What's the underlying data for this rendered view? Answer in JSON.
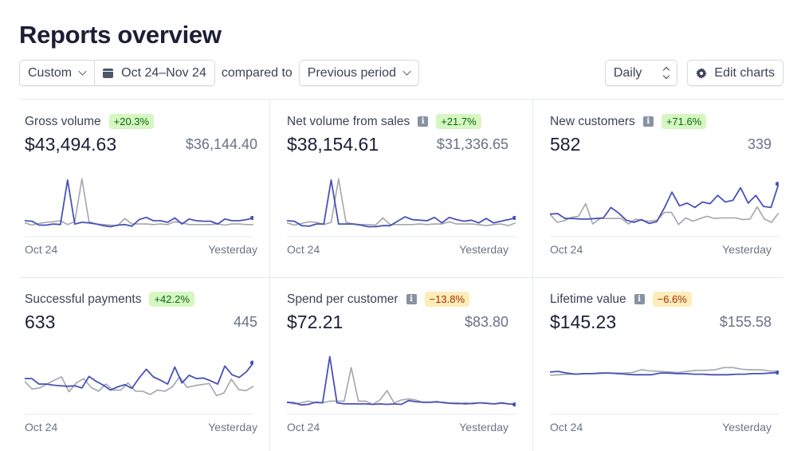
{
  "header": {
    "title": "Reports overview"
  },
  "toolbar": {
    "range_preset": "Custom",
    "date_range": "Oct 24–Nov 24",
    "compared_label": "compared to",
    "comparison": "Previous period",
    "interval": "Daily",
    "edit_charts": "Edit charts"
  },
  "colors": {
    "current": "#4752b8",
    "previous": "#a3a6ad",
    "badge_up_bg": "#d7f7c2",
    "badge_down_bg": "#fcedb9"
  },
  "cards": [
    {
      "label": "Gross volume",
      "info": false,
      "change": "+20.3%",
      "trend": "up",
      "value": "$43,494.63",
      "previous": "$36,144.40",
      "x_start": "Oct 24",
      "x_end": "Yesterday"
    },
    {
      "label": "Net volume from sales",
      "info": true,
      "change": "+21.7%",
      "trend": "up",
      "value": "$38,154.61",
      "previous": "$31,336.65",
      "x_start": "Oct 24",
      "x_end": "Yesterday"
    },
    {
      "label": "New customers",
      "info": true,
      "change": "+71.6%",
      "trend": "up",
      "value": "582",
      "previous": "339",
      "x_start": "Oct 24",
      "x_end": "Yesterday"
    },
    {
      "label": "Successful payments",
      "info": false,
      "change": "+42.2%",
      "trend": "up",
      "value": "633",
      "previous": "445",
      "x_start": "Oct 24",
      "x_end": "Yesterday"
    },
    {
      "label": "Spend per customer",
      "info": true,
      "change": "−13.8%",
      "trend": "down",
      "value": "$72.21",
      "previous": "$83.80",
      "x_start": "Oct 24",
      "x_end": "Yesterday"
    },
    {
      "label": "Lifetime value",
      "info": true,
      "change": "−6.6%",
      "trend": "down",
      "value": "$145.23",
      "previous": "$155.58",
      "x_start": "Oct 24",
      "x_end": "Yesterday"
    }
  ],
  "chart_data": [
    {
      "type": "line",
      "title": "Gross volume",
      "x_start": "Oct 24",
      "x_end": "Yesterday",
      "ylim": [
        0,
        100
      ],
      "series": [
        {
          "name": "current",
          "values": [
            16,
            15,
            8,
            8,
            10,
            9,
            90,
            10,
            13,
            12,
            10,
            7,
            5,
            8,
            9,
            6,
            18,
            22,
            16,
            16,
            13,
            21,
            10,
            19,
            16,
            15,
            15,
            10,
            19,
            16,
            16,
            18,
            21
          ]
        },
        {
          "name": "previous",
          "values": [
            12,
            8,
            11,
            13,
            14,
            16,
            9,
            14,
            92,
            14,
            10,
            9,
            8,
            7,
            20,
            10,
            10,
            10,
            9,
            10,
            9,
            14,
            12,
            9,
            9,
            9,
            9,
            10,
            8,
            10,
            10,
            9,
            9
          ]
        }
      ]
    },
    {
      "type": "line",
      "title": "Net volume from sales",
      "x_start": "Oct 24",
      "x_end": "Yesterday",
      "ylim": [
        0,
        100
      ],
      "series": [
        {
          "name": "current",
          "values": [
            16,
            15,
            7,
            6,
            10,
            10,
            90,
            10,
            10,
            10,
            8,
            5,
            5,
            7,
            7,
            15,
            23,
            18,
            17,
            16,
            22,
            12,
            22,
            18,
            15,
            17,
            12,
            20,
            12,
            15,
            18,
            21
          ]
        },
        {
          "name": "previous",
          "values": [
            12,
            8,
            11,
            14,
            13,
            9,
            13,
            92,
            13,
            10,
            9,
            9,
            8,
            21,
            9,
            9,
            9,
            9,
            10,
            9,
            10,
            10,
            14,
            10,
            10,
            10,
            9,
            7,
            9,
            10,
            7,
            12
          ]
        }
      ]
    },
    {
      "type": "line",
      "title": "New customers",
      "x_start": "Oct 24",
      "x_end": "Yesterday",
      "ylim": [
        0,
        100
      ],
      "series": [
        {
          "name": "current",
          "values": [
            28,
            29,
            20,
            20,
            19,
            19,
            20,
            21,
            40,
            30,
            17,
            13,
            18,
            11,
            14,
            39,
            68,
            43,
            48,
            40,
            50,
            47,
            62,
            50,
            53,
            76,
            48,
            62,
            42,
            40,
            83
          ]
        },
        {
          "name": "previous",
          "values": [
            28,
            13,
            16,
            22,
            24,
            47,
            10,
            20,
            20,
            20,
            20,
            10,
            19,
            16,
            15,
            17,
            31,
            31,
            9,
            21,
            15,
            20,
            24,
            20,
            21,
            21,
            21,
            18,
            19,
            41,
            19,
            13,
            30
          ]
        }
      ]
    },
    {
      "type": "line",
      "title": "Successful payments",
      "x_start": "Oct 24",
      "x_end": "Yesterday",
      "ylim": [
        0,
        100
      ],
      "series": [
        {
          "name": "current",
          "values": [
            52,
            52,
            42,
            42,
            40,
            39,
            38,
            39,
            35,
            56,
            47,
            40,
            31,
            37,
            41,
            34,
            53,
            69,
            55,
            49,
            42,
            73,
            44,
            58,
            52,
            53,
            48,
            42,
            75,
            59,
            54,
            64,
            81
          ]
        },
        {
          "name": "previous",
          "values": [
            47,
            33,
            35,
            42,
            49,
            55,
            28,
            44,
            52,
            36,
            29,
            42,
            31,
            31,
            44,
            29,
            29,
            23,
            31,
            29,
            37,
            55,
            36,
            39,
            41,
            43,
            21,
            26,
            51,
            32,
            30,
            38
          ]
        }
      ]
    },
    {
      "type": "line",
      "title": "Spend per customer",
      "x_start": "Oct 24",
      "x_end": "Yesterday",
      "ylim": [
        0,
        100
      ],
      "series": [
        {
          "name": "current",
          "values": [
            9,
            8,
            4,
            5,
            9,
            8,
            92,
            8,
            6,
            6,
            6,
            6,
            5,
            6,
            5,
            6,
            5,
            12,
            10,
            9,
            9,
            10,
            8,
            7,
            7,
            6,
            7,
            8,
            7,
            6,
            8,
            6,
            5
          ]
        },
        {
          "name": "previous",
          "values": [
            9,
            6,
            8,
            11,
            8,
            8,
            11,
            11,
            11,
            72,
            11,
            11,
            5,
            13,
            30,
            8,
            13,
            15,
            13,
            9,
            9,
            9,
            9,
            7,
            6,
            8,
            6,
            8,
            7,
            6,
            7,
            6,
            5
          ]
        }
      ]
    },
    {
      "type": "line",
      "title": "Lifetime value",
      "x_start": "Oct 24",
      "x_end": "Yesterday",
      "ylim": [
        0,
        100
      ],
      "series": [
        {
          "name": "current",
          "values": [
            64,
            65,
            62,
            60,
            61,
            61,
            62,
            62,
            61,
            60,
            59,
            59,
            59,
            62,
            62,
            61,
            61,
            60,
            60,
            59,
            59,
            59,
            60,
            60,
            61,
            61,
            62,
            63
          ]
        },
        {
          "name": "previous",
          "values": [
            58,
            59,
            60,
            60,
            61,
            61,
            62,
            62,
            62,
            63,
            68,
            66,
            65,
            64,
            63,
            65,
            67,
            67,
            68,
            72,
            72,
            69,
            68,
            68,
            66,
            65
          ]
        }
      ]
    }
  ]
}
